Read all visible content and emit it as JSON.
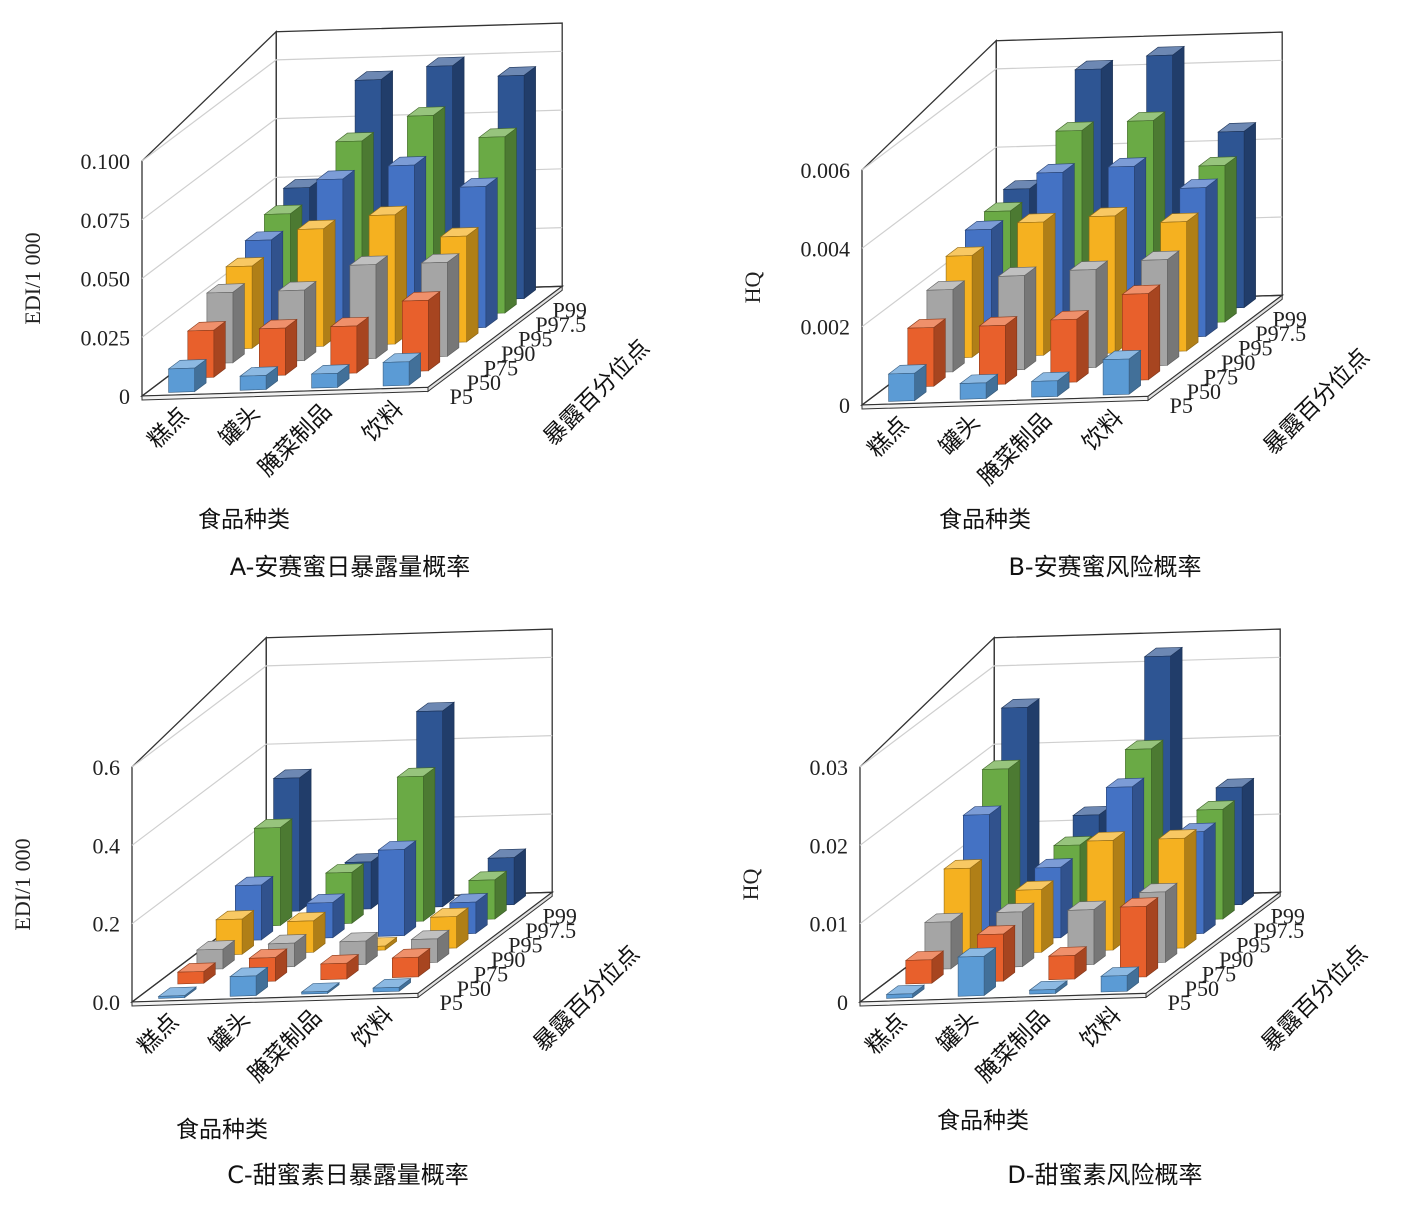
{
  "categories": [
    "糕点",
    "罐头",
    "腌菜制品",
    "饮料"
  ],
  "percentiles": [
    "P5",
    "P50",
    "P75",
    "P90",
    "P95",
    "P97.5",
    "P99"
  ],
  "series_colors": {
    "P5": "#5b9bd5",
    "P50": "#e8602c",
    "P75": "#a5a5a5",
    "P90": "#f5b120",
    "P95": "#4472c4",
    "P97.5": "#6aaa45",
    "P99": "#2e5593"
  },
  "chart_data": [
    {
      "type": "bar",
      "caption": "A-安赛蜜日暴露量概率",
      "ylabel": "EDI/1 000",
      "xlabel": "食品种类",
      "zlabel": "暴露百分位点",
      "yticks": [
        "0",
        "0.025",
        "0.050",
        "0.075",
        "0.100"
      ],
      "ylim": [
        0,
        0.1
      ],
      "categories": [
        "糕点",
        "罐头",
        "腌菜制品",
        "饮料"
      ],
      "series": [
        {
          "name": "P5",
          "values": [
            0.01,
            0.006,
            0.006,
            0.01
          ]
        },
        {
          "name": "P50",
          "values": [
            0.02,
            0.02,
            0.02,
            0.03
          ]
        },
        {
          "name": "P75",
          "values": [
            0.03,
            0.03,
            0.04,
            0.04
          ]
        },
        {
          "name": "P90",
          "values": [
            0.035,
            0.05,
            0.055,
            0.045
          ]
        },
        {
          "name": "P95",
          "values": [
            0.04,
            0.065,
            0.07,
            0.06
          ]
        },
        {
          "name": "P97.5",
          "values": [
            0.045,
            0.075,
            0.085,
            0.075
          ]
        },
        {
          "name": "P99",
          "values": [
            0.05,
            0.095,
            0.1,
            0.095
          ]
        }
      ]
    },
    {
      "type": "bar",
      "caption": "B-安赛蜜风险概率",
      "ylabel": "HQ",
      "xlabel": "食品种类",
      "zlabel": "暴露百分位点",
      "yticks": [
        "0",
        "0.002",
        "0.004",
        "0.006"
      ],
      "ylim": [
        0,
        0.006
      ],
      "categories": [
        "糕点",
        "罐头",
        "腌菜制品",
        "饮料"
      ],
      "series": [
        {
          "name": "P5",
          "values": [
            0.0007,
            0.0004,
            0.0004,
            0.0009
          ]
        },
        {
          "name": "P50",
          "values": [
            0.0015,
            0.0015,
            0.0016,
            0.0022
          ]
        },
        {
          "name": "P75",
          "values": [
            0.0021,
            0.0024,
            0.0025,
            0.0027
          ]
        },
        {
          "name": "P90",
          "values": [
            0.0026,
            0.0034,
            0.0035,
            0.0033
          ]
        },
        {
          "name": "P95",
          "values": [
            0.0029,
            0.0043,
            0.0044,
            0.0038
          ]
        },
        {
          "name": "P97.5",
          "values": [
            0.003,
            0.005,
            0.0052,
            0.004
          ]
        },
        {
          "name": "P99",
          "values": [
            0.0032,
            0.0062,
            0.0065,
            0.0045
          ]
        }
      ]
    },
    {
      "type": "bar",
      "caption": "C-甜蜜素日暴露量概率",
      "ylabel": "EDI/1 000",
      "xlabel": "食品种类",
      "zlabel": "暴露百分位点",
      "yticks": [
        "0.0",
        "0.2",
        "0.4",
        "0.6"
      ],
      "ylim": [
        0,
        0.6
      ],
      "categories": [
        "糕点",
        "罐头",
        "腌菜制品",
        "饮料"
      ],
      "series": [
        {
          "name": "P5",
          "values": [
            0.005,
            0.05,
            0.005,
            0.01
          ]
        },
        {
          "name": "P50",
          "values": [
            0.03,
            0.06,
            0.04,
            0.05
          ]
        },
        {
          "name": "P75",
          "values": [
            0.05,
            0.06,
            0.06,
            0.06
          ]
        },
        {
          "name": "P90",
          "values": [
            0.09,
            0.08,
            0.01,
            0.08
          ]
        },
        {
          "name": "P95",
          "values": [
            0.14,
            0.09,
            0.22,
            0.08
          ]
        },
        {
          "name": "P97.5",
          "values": [
            0.25,
            0.13,
            0.37,
            0.1
          ]
        },
        {
          "name": "P99",
          "values": [
            0.34,
            0.12,
            0.5,
            0.12
          ]
        }
      ]
    },
    {
      "type": "bar",
      "caption": "D-甜蜜素风险概率",
      "ylabel": "HQ",
      "xlabel": "食品种类",
      "zlabel": "暴露百分位点",
      "yticks": [
        "0",
        "0.01",
        "0.02",
        "0.03"
      ],
      "ylim": [
        0,
        0.03
      ],
      "categories": [
        "糕点",
        "罐头",
        "腌菜制品",
        "饮料"
      ],
      "series": [
        {
          "name": "P5",
          "values": [
            0.0005,
            0.005,
            0.0005,
            0.002
          ]
        },
        {
          "name": "P50",
          "values": [
            0.003,
            0.006,
            0.003,
            0.009
          ]
        },
        {
          "name": "P75",
          "values": [
            0.006,
            0.007,
            0.007,
            0.009
          ]
        },
        {
          "name": "P90",
          "values": [
            0.011,
            0.008,
            0.014,
            0.014
          ]
        },
        {
          "name": "P95",
          "values": [
            0.016,
            0.009,
            0.019,
            0.013
          ]
        },
        {
          "name": "P97.5",
          "values": [
            0.02,
            0.01,
            0.022,
            0.014
          ]
        },
        {
          "name": "P99",
          "values": [
            0.026,
            0.012,
            0.032,
            0.015
          ]
        }
      ]
    }
  ]
}
